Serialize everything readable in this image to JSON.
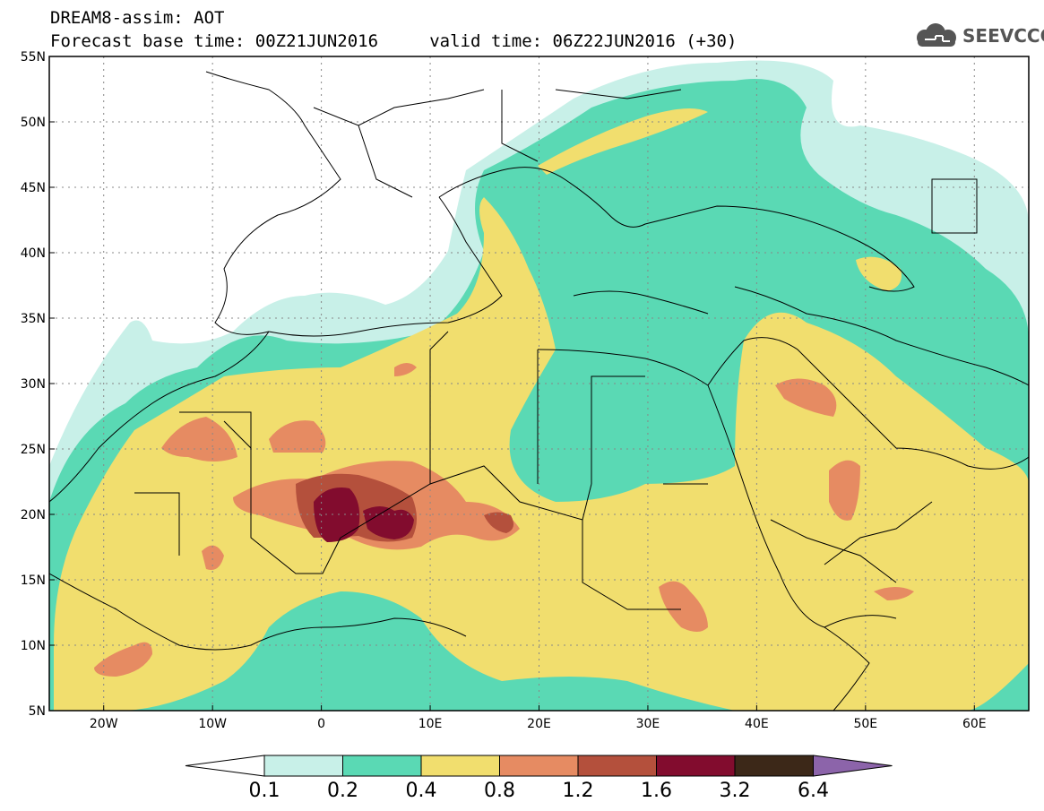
{
  "header": {
    "title_line1": "DREAM8-assim: AOT",
    "title_line2": "Forecast base time: 00Z21JUN2016     valid time: 06Z22JUN2016 (+30)",
    "logo_text": "SEEVCCC"
  },
  "map": {
    "projection": "lat-lon",
    "lon_range": [
      -25,
      65
    ],
    "lat_range": [
      5,
      55
    ],
    "lat_labels": [
      "55N",
      "50N",
      "45N",
      "40N",
      "35N",
      "30N",
      "25N",
      "20N",
      "15N",
      "10N",
      "5N"
    ],
    "lat_values": [
      55,
      50,
      45,
      40,
      35,
      30,
      25,
      20,
      15,
      10,
      5
    ],
    "lon_labels": [
      "20W",
      "10W",
      "0",
      "10E",
      "20E",
      "30E",
      "40E",
      "50E",
      "60E"
    ],
    "lon_values": [
      -20,
      -10,
      0,
      10,
      20,
      30,
      40,
      50,
      60
    ],
    "gridlines": "dotted"
  },
  "legend": {
    "levels": [
      "0.1",
      "0.2",
      "0.4",
      "0.8",
      "1.2",
      "1.6",
      "3.2",
      "6.4"
    ],
    "colors": [
      "#ffffff",
      "#c8f0e8",
      "#5ad9b4",
      "#f1de6e",
      "#e68b62",
      "#b4503c",
      "#820c2e",
      "#3c2818",
      "#8c64aa"
    ]
  }
}
